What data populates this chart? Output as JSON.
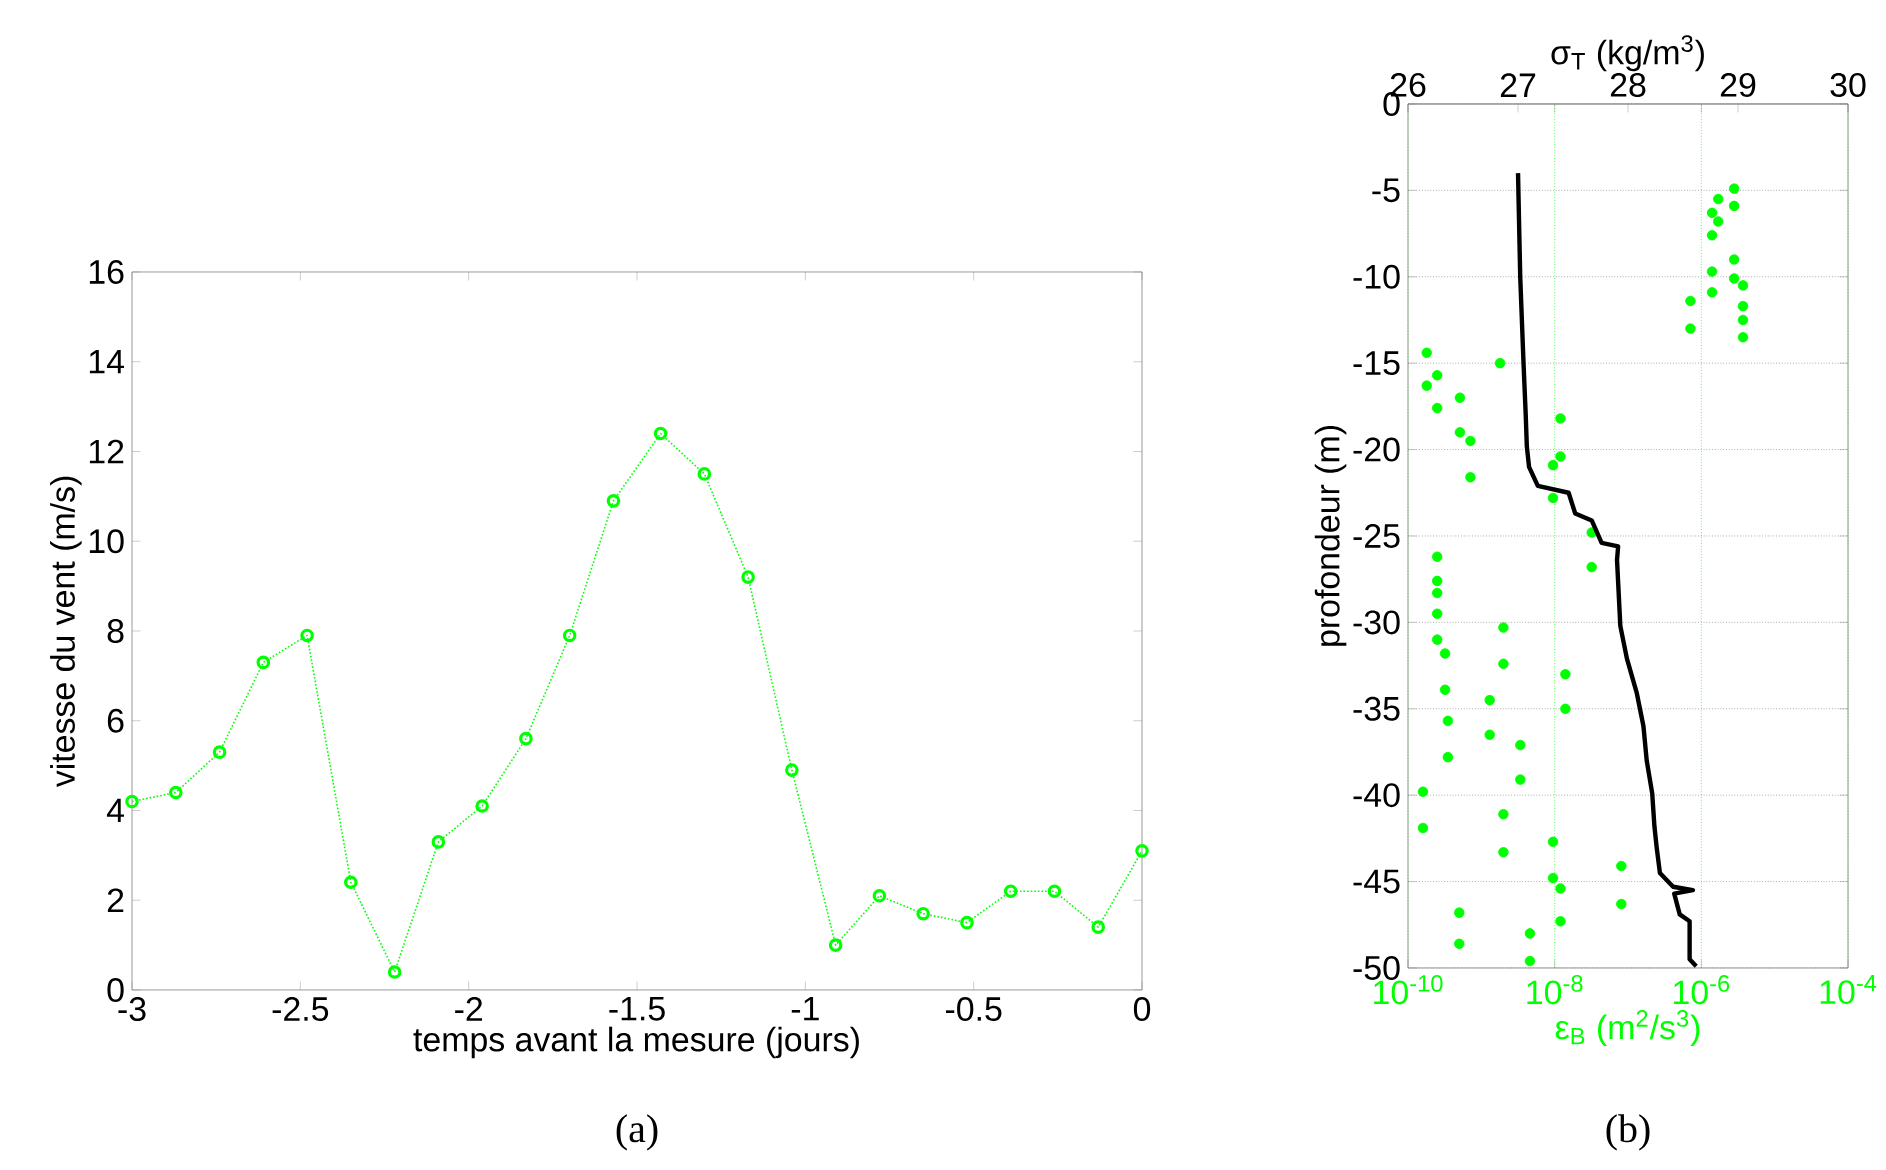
{
  "chart_data": [
    {
      "type": "line",
      "xlabel": "temps avant la mesure (jours)",
      "ylabel": "vitesse du vent (m/s)",
      "annotations": [
        "(a)"
      ],
      "marker": "circle",
      "line_style": "dotted",
      "grid": false,
      "xlim": [
        -3,
        0
      ],
      "xticks": [
        -3,
        -2.5,
        -2,
        -1.5,
        -1,
        -0.5,
        0
      ],
      "ylim": [
        0,
        16
      ],
      "yticks": [
        0,
        2,
        4,
        6,
        8,
        10,
        12,
        14,
        16
      ],
      "x": [
        -3,
        -2.87,
        -2.74,
        -2.61,
        -2.48,
        -2.35,
        -2.22,
        -2.09,
        -1.96,
        -1.83,
        -1.7,
        -1.57,
        -1.43,
        -1.3,
        -1.17,
        -1.04,
        -0.91,
        -0.78,
        -0.65,
        -0.52,
        -0.39,
        -0.26,
        -0.13,
        0
      ],
      "series": [
        {
          "color": "#00ff00",
          "values": [
            4.2,
            4.4,
            5.3,
            7.3,
            7.9,
            2.4,
            0.4,
            3.3,
            4.1,
            5.6,
            7.9,
            10.9,
            12.4,
            11.5,
            9.2,
            4.9,
            1.0,
            2.1,
            1.7,
            1.5,
            2.2,
            2.2,
            1.4,
            3.1
          ]
        }
      ]
    },
    {
      "type": "scatter",
      "xlabel": "ε$_{B}$ (m$^{2}$/s$^{3}$)",
      "x2label": "σ$_{T}$ (kg/m$^{3}$)",
      "ylabel": "profondeur (m)",
      "annotations": [
        "(b)"
      ],
      "log": "x",
      "grid": true,
      "xlim": [
        1e-10,
        0.0001
      ],
      "xticks": [
        {
          "value": 1e-10,
          "label": "10$^{-10}$"
        },
        {
          "value": 1e-08,
          "label": "10$^{-8}$"
        },
        {
          "value": 1e-06,
          "label": "10$^{-6}$"
        },
        {
          "value": 0.0001,
          "label": "10$^{-4}$"
        }
      ],
      "x2lim": [
        26,
        30
      ],
      "x2ticks": [
        26,
        27,
        28,
        29,
        30
      ],
      "ylim": [
        -50,
        0
      ],
      "yticks": [
        0,
        -5,
        -10,
        -15,
        -20,
        -25,
        -30,
        -35,
        -40,
        -45,
        -50
      ],
      "series": [
        {
          "type": "scatter",
          "color": "#00ff00",
          "x": [
            1.8e-10,
            1.8e-10,
            2.5e-10,
            2.5e-10,
            5.1e-10,
            5.1e-10,
            7.1e-10,
            7.1e-10,
            1.8e-09,
            9.5e-09,
            9.5e-09,
            1.2e-08,
            1.2e-08,
            3.2e-08,
            3.2e-08,
            7.1e-07,
            7.1e-07,
            1.4e-06,
            1.4e-06,
            1.4e-06,
            1.4e-06,
            1.7e-06,
            1.7e-06,
            2.8e-06,
            2.8e-06,
            2.8e-06,
            2.8e-06,
            3.7e-06,
            3.7e-06,
            3.7e-06,
            3.7e-06,
            2.5e-10,
            2.5e-10,
            2.5e-10,
            2.5e-10,
            2.5e-10,
            3.2e-10,
            3.2e-10,
            3.5e-10,
            3.5e-10,
            1.6e-10,
            1.6e-10,
            5e-10,
            5e-10,
            1.3e-09,
            1.3e-09,
            2e-09,
            2e-09,
            2e-09,
            2e-09,
            3.4e-09,
            3.4e-09,
            4.6e-09,
            4.6e-09,
            9.5e-09,
            9.5e-09,
            1.2e-08,
            1.2e-08,
            1.4e-08,
            1.4e-08,
            8.1e-08,
            8.1e-08
          ],
          "values": [
            -14.4,
            -16.3,
            -15.7,
            -17.6,
            -17.0,
            -19.0,
            -19.5,
            -21.6,
            -15.0,
            -20.9,
            -22.8,
            -18.2,
            -20.4,
            -24.8,
            -26.8,
            -11.4,
            -13.0,
            -6.3,
            -7.6,
            -9.7,
            -10.9,
            -5.5,
            -6.8,
            -4.9,
            -5.9,
            -9.0,
            -10.1,
            -10.5,
            -11.7,
            -12.5,
            -13.5,
            -26.2,
            -27.6,
            -28.3,
            -29.5,
            -31.0,
            -31.8,
            -33.9,
            -35.7,
            -37.8,
            -39.8,
            -41.9,
            -46.8,
            -48.6,
            -34.5,
            -36.5,
            -30.3,
            -32.4,
            -41.1,
            -43.3,
            -37.1,
            -39.1,
            -48.0,
            -49.6,
            -42.7,
            -44.8,
            -45.4,
            -47.3,
            -33.0,
            -35.0,
            -44.1,
            -46.3
          ]
        },
        {
          "type": "line",
          "axis": "x2",
          "color": "#000000",
          "x": [
            27.0,
            27.02,
            27.05,
            27.07,
            27.08,
            27.1,
            27.18,
            27.46,
            27.52,
            27.67,
            27.76,
            27.91,
            27.9,
            27.93,
            27.99,
            28.08,
            28.14,
            28.17,
            28.22,
            28.24,
            28.26,
            28.29,
            28.41,
            28.59,
            28.42,
            28.47,
            28.56,
            28.56,
            28.62
          ],
          "values": [
            -4.0,
            -10.0,
            -15.0,
            -18.0,
            -19.8,
            -21.0,
            -22.1,
            -22.5,
            -23.7,
            -24.1,
            -25.4,
            -25.6,
            -26.4,
            -30.2,
            -32.1,
            -34.1,
            -36.0,
            -38.0,
            -39.9,
            -41.8,
            -43.0,
            -44.5,
            -45.3,
            -45.5,
            -45.7,
            -46.9,
            -47.3,
            -49.5,
            -49.9
          ]
        }
      ]
    }
  ]
}
